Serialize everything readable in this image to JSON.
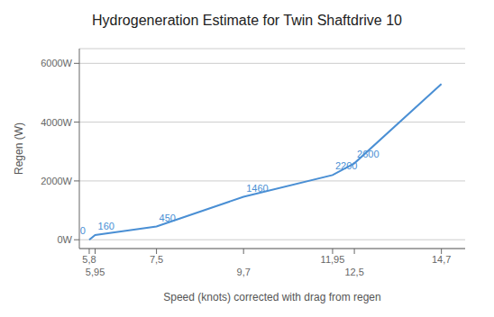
{
  "chart_data": {
    "type": "line",
    "title": "Hydrogeneration Estimate for Twin Shaftdrive 10",
    "xlabel": "Speed (knots) corrected with drag from regen",
    "ylabel": "Regen (W)",
    "x": [
      5.8,
      5.95,
      7.5,
      9.7,
      11.95,
      12.5,
      14.7
    ],
    "values": [
      0,
      160,
      450,
      1460,
      2200,
      2600,
      5300
    ],
    "color": "#4a8fd4",
    "xlim": [
      5.55,
      15.3
    ],
    "xticks": [
      {
        "value": 5.8,
        "label": "5,8"
      },
      {
        "value": 5.95,
        "label": "5,95"
      },
      {
        "value": 7.5,
        "label": "7,5"
      },
      {
        "value": 9.7,
        "label": "9,7"
      },
      {
        "value": 11.95,
        "label": "11,95"
      },
      {
        "value": 12.5,
        "label": "12,5"
      },
      {
        "value": 14.7,
        "label": "14,7"
      }
    ],
    "ylim": [
      -300,
      6500
    ],
    "yticks": [
      {
        "value": 0,
        "label": "0W"
      },
      {
        "value": 2000,
        "label": "2000W"
      },
      {
        "value": 4000,
        "label": "4000W"
      },
      {
        "value": 6000,
        "label": "6000W"
      }
    ],
    "grid": true,
    "annotations": [
      {
        "label": "0",
        "x": 5.8,
        "y": 0
      },
      {
        "label": "160",
        "x": 5.95,
        "y": 160
      },
      {
        "label": "450",
        "x": 7.5,
        "y": 450
      },
      {
        "label": "1460",
        "x": 9.7,
        "y": 1460
      },
      {
        "label": "2200",
        "x": 11.95,
        "y": 2200
      },
      {
        "label": "2600",
        "x": 12.5,
        "y": 2600
      }
    ]
  }
}
